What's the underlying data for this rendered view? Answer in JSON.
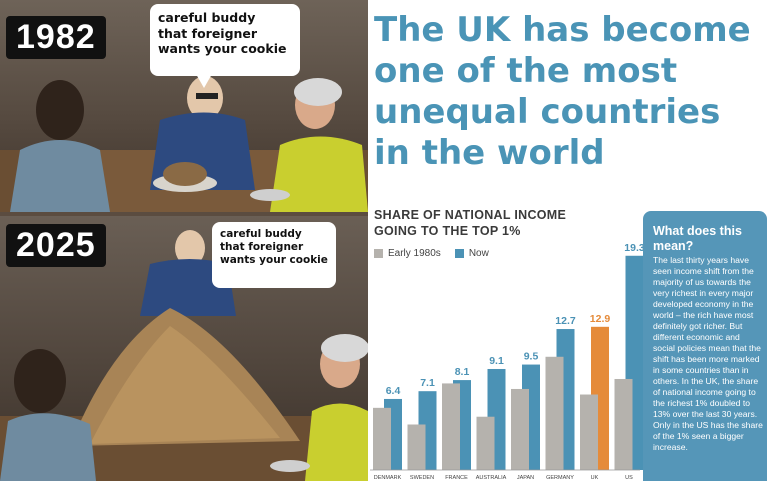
{
  "comic": {
    "top": {
      "year": "1982",
      "bubble_lines": [
        "careful buddy",
        "that foreigner",
        "wants your cookie"
      ]
    },
    "bottom": {
      "year": "2025",
      "bubble_lines": [
        "careful buddy",
        "that foreigner",
        "wants your cookie"
      ]
    }
  },
  "infographic": {
    "headline_lines": [
      "The UK has become",
      "one of the most",
      "unequal countries",
      "in the world"
    ],
    "side_box": {
      "title_lines": [
        "What does this",
        "mean?"
      ],
      "text": "The last thirty years have seen income shift from the majority of us towards the very richest in every major developed economy in the world – the rich have most definitely got richer. But different economic and social policies mean that the shift has been more marked in some countries than in others. In the UK, the share of national income going to the richest 1% doubled to 13% over the last 30 years. Only in the US has the share of the 1% seen a bigger increase."
    }
  },
  "colors": {
    "early": "#b5b2ad",
    "now": "#4b92b5",
    "uk_highlight": "#e58b3a",
    "headline": "#4a94b6"
  },
  "chart_data": {
    "type": "bar",
    "title_lines": [
      "SHARE OF NATIONAL INCOME",
      "GOING TO THE TOP 1%"
    ],
    "categories": [
      "DENMARK",
      "SWEDEN",
      "FRANCE",
      "AUSTRALIA",
      "JAPAN",
      "GERMANY",
      "UK",
      "US"
    ],
    "series": [
      {
        "name": "Early 1980s",
        "values": [
          5.6,
          4.1,
          7.8,
          4.8,
          7.3,
          10.2,
          6.8,
          8.2
        ]
      },
      {
        "name": "Now",
        "values": [
          6.4,
          7.1,
          8.1,
          9.1,
          9.5,
          12.7,
          12.9,
          19.3
        ]
      }
    ],
    "data_labels": [
      "6.4",
      "7.1",
      "8.1",
      "9.1",
      "9.5",
      "12.7",
      "12.9",
      "19.3"
    ],
    "highlight": "UK",
    "ylim": [
      0,
      20
    ],
    "grid": false,
    "legend": "top-left"
  }
}
